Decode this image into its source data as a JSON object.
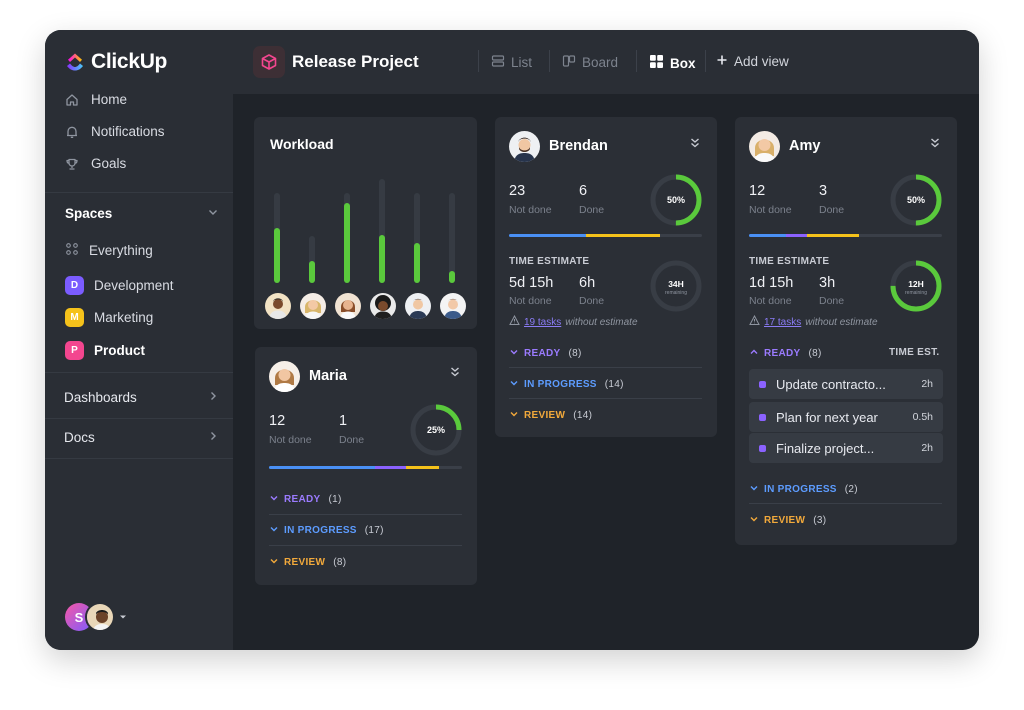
{
  "app": {
    "logo": "ClickUp"
  },
  "colors": {
    "accent_green": "#5ac93c",
    "purple": "#8b62ff",
    "blue": "#4a90f5",
    "yellow": "#f5c21b",
    "orange": "#f2a93b"
  },
  "sidebar": {
    "nav": [
      {
        "label": "Home",
        "icon": "home-icon"
      },
      {
        "label": "Notifications",
        "icon": "bell-icon"
      },
      {
        "label": "Goals",
        "icon": "trophy-icon"
      }
    ],
    "spaces_label": "Spaces",
    "everything_label": "Everything",
    "spaces": [
      {
        "letter": "D",
        "label": "Development",
        "color": "#7b5cff"
      },
      {
        "letter": "M",
        "label": "Marketing",
        "color": "#f5c21b"
      },
      {
        "letter": "P",
        "label": "Product",
        "color": "#f3468f"
      }
    ],
    "dashboards_label": "Dashboards",
    "docs_label": "Docs",
    "user_initial": "S"
  },
  "topbar": {
    "project_title": "Release Project",
    "views": {
      "list": "List",
      "board": "Board",
      "box": "Box",
      "add": "Add view"
    }
  },
  "workload": {
    "title": "Workload",
    "bars": [
      {
        "total": 90,
        "fill": 55
      },
      {
        "total": 47,
        "fill": 22
      },
      {
        "total": 90,
        "fill": 80
      },
      {
        "total": 104,
        "fill": 48
      },
      {
        "total": 90,
        "fill": 40
      },
      {
        "total": 90,
        "fill": 12
      }
    ]
  },
  "brendan": {
    "name": "Brendan",
    "not_done": "23",
    "not_done_label": "Not done",
    "done": "6",
    "done_label": "Done",
    "percent": "50%",
    "ratio": 0.5,
    "time_title": "TIME ESTIMATE",
    "time_not_done": "5d 15h",
    "time_not_done_label": "Not done",
    "time_done": "6h",
    "time_done_label": "Done",
    "remaining": "34H",
    "remaining_label": "remaining",
    "remaining_ratio": 0.0,
    "warn_count": "19 tasks",
    "warn_text": "without estimate",
    "groups": [
      {
        "label": "READY",
        "count": "(8)"
      },
      {
        "label": "IN PROGRESS",
        "count": "(14)"
      },
      {
        "label": "REVIEW",
        "count": "(14)"
      }
    ]
  },
  "amy": {
    "name": "Amy",
    "not_done": "12",
    "not_done_label": "Not done",
    "done": "3",
    "done_label": "Done",
    "percent": "50%",
    "ratio": 0.5,
    "time_title": "TIME ESTIMATE",
    "time_not_done": "1d 15h",
    "time_not_done_label": "Not done",
    "time_done": "3h",
    "time_done_label": "Done",
    "remaining": "12H",
    "remaining_label": "remaining",
    "remaining_ratio": 0.75,
    "warn_count": "17 tasks",
    "warn_text": "without estimate",
    "ready_label": "READY",
    "ready_count": "(8)",
    "time_est_label": "TIME EST.",
    "tasks": [
      {
        "name": "Update contracto...",
        "time": "2h"
      },
      {
        "name": "Plan for next year",
        "time": "0.5h"
      },
      {
        "name": "Finalize project...",
        "time": "2h"
      }
    ],
    "groups": [
      {
        "label": "IN PROGRESS",
        "count": "(2)"
      },
      {
        "label": "REVIEW",
        "count": "(3)"
      }
    ]
  },
  "maria": {
    "name": "Maria",
    "not_done": "12",
    "not_done_label": "Not done",
    "done": "1",
    "done_label": "Done",
    "percent": "25%",
    "ratio": 0.25,
    "groups": [
      {
        "label": "READY",
        "count": "(1)"
      },
      {
        "label": "IN PROGRESS",
        "count": "(17)"
      },
      {
        "label": "REVIEW",
        "count": "(8)"
      }
    ]
  }
}
